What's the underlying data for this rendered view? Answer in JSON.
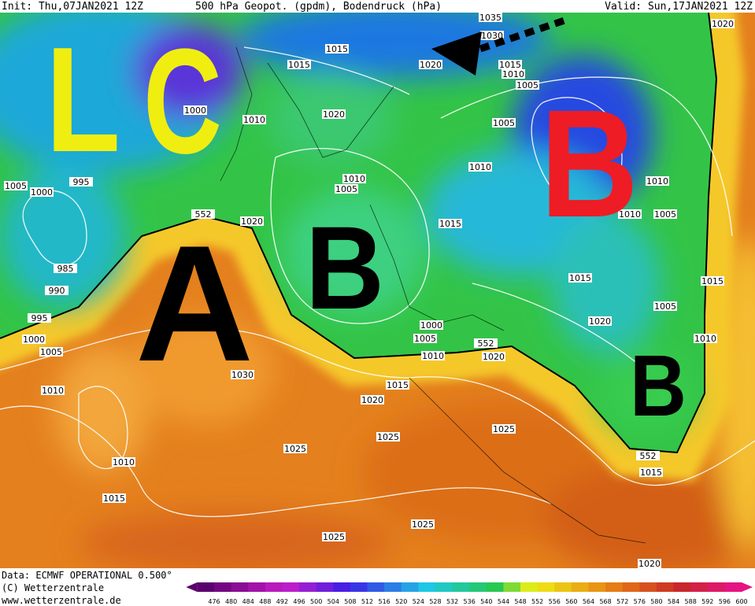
{
  "header": {
    "init": "Init: Thu,07JAN2021 12Z",
    "title": "500 hPa Geopot. (gpdm), Bodendruck (hPa)",
    "valid": "Valid: Sun,17JAN2021 12Z"
  },
  "annotations": {
    "l": "L",
    "c": "C",
    "b_red": "B",
    "a": "A",
    "b_center": "B",
    "b_east": "B"
  },
  "isobar_labels": [
    "1015",
    "1015",
    "1020",
    "1035",
    "1030",
    "1015",
    "1010",
    "1005",
    "1020",
    "1000",
    "1010",
    "1020",
    "1005",
    "1010",
    "1010",
    "1005",
    "1010",
    "1010",
    "1005",
    "1005",
    "1000",
    "995",
    "552",
    "1020",
    "1015",
    "985",
    "990",
    "995",
    "1000",
    "1005",
    "1015",
    "1015",
    "1005",
    "1020",
    "1000",
    "1005",
    "1010",
    "552",
    "1020",
    "1010",
    "1030",
    "1010",
    "1015",
    "1020",
    "1025",
    "1025",
    "1025",
    "1010",
    "552",
    "1015",
    "1015",
    "1025",
    "1025",
    "1020"
  ],
  "colorbar": {
    "labels": [
      476,
      480,
      484,
      488,
      492,
      496,
      500,
      504,
      508,
      512,
      516,
      520,
      524,
      528,
      532,
      536,
      540,
      544,
      548,
      552,
      556,
      560,
      564,
      568,
      572,
      576,
      580,
      584,
      588,
      592,
      596,
      600
    ]
  },
  "footer": {
    "data": "Data: ECMWF OPERATIONAL 0.500°",
    "copyright": "(C) Wetterzentrale",
    "url": "www.wetterzentrale.de"
  }
}
